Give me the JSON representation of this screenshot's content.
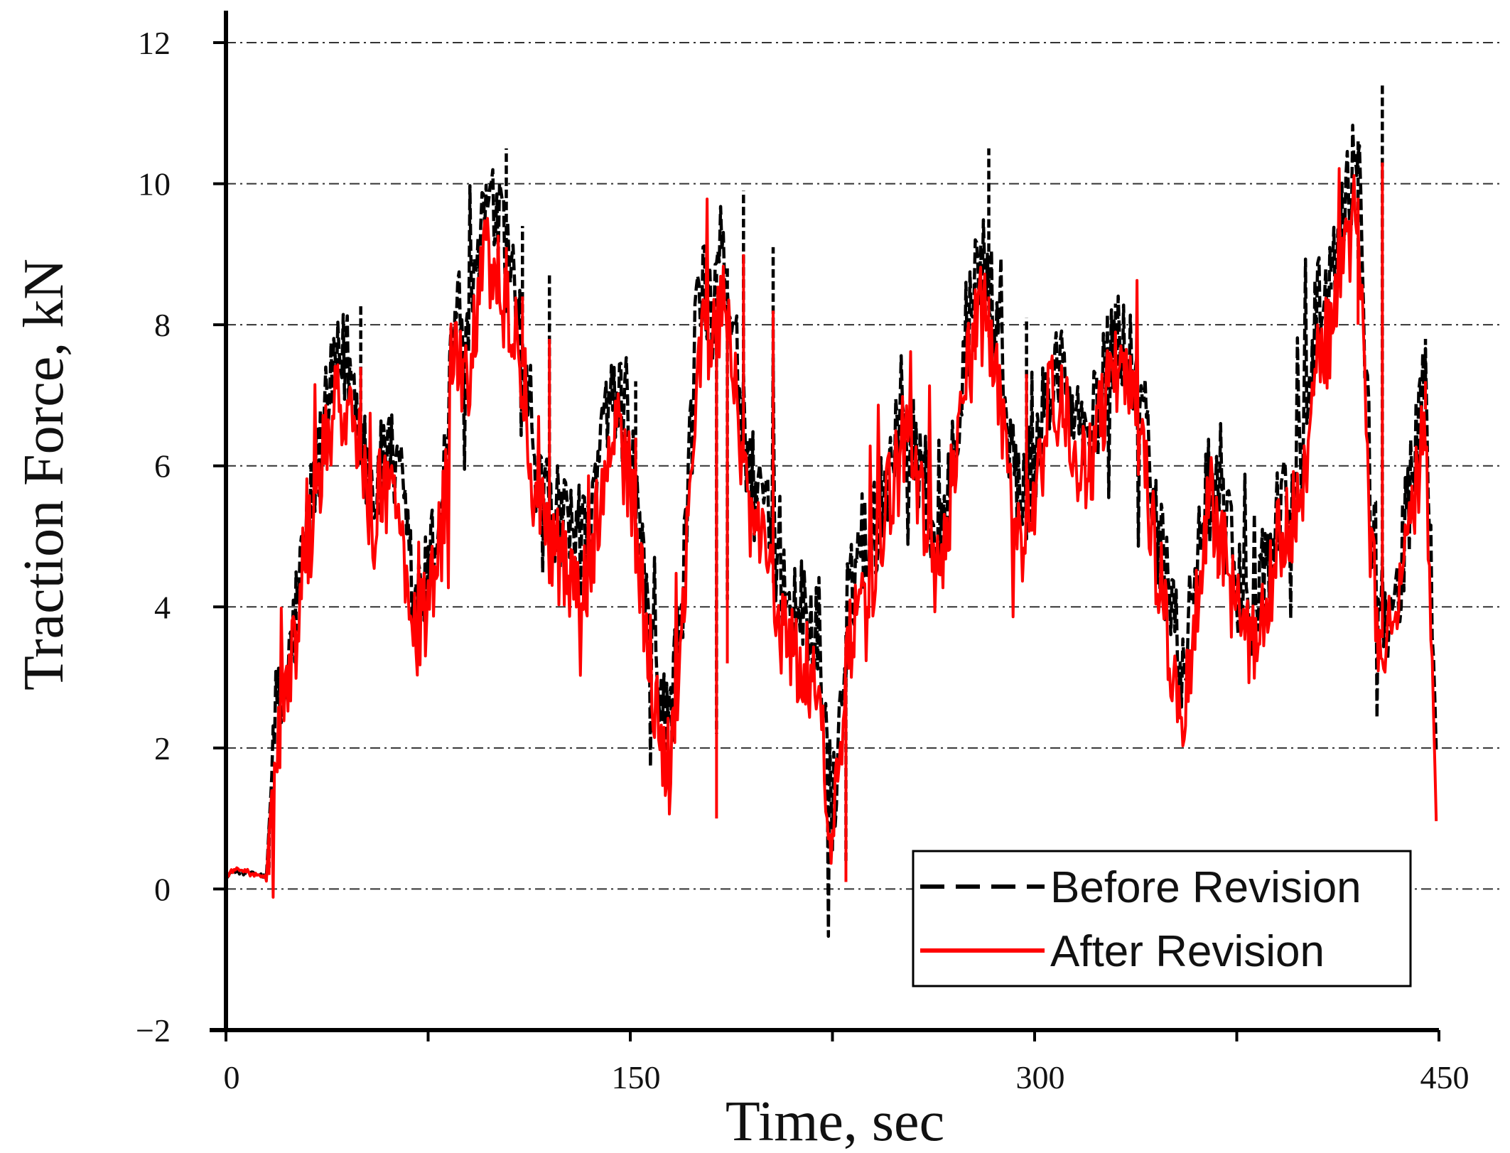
{
  "chart_data": {
    "type": "line",
    "title": "",
    "xlabel": "Time, sec",
    "ylabel": "Traction Force, kN",
    "xlim": [
      0,
      450
    ],
    "ylim": [
      -2,
      12
    ],
    "xticks": [
      0,
      150,
      300,
      450
    ],
    "yticks": [
      -2,
      0,
      2,
      4,
      6,
      8,
      10,
      12
    ],
    "grid": "horizontal dash-dot",
    "legend_position": "bottom-right",
    "series": [
      {
        "name": "Before Revision",
        "style": "dashed",
        "color": "#000000",
        "x": [
          0,
          5,
          10,
          15,
          18,
          22,
          28,
          34,
          40,
          45,
          50,
          55,
          60,
          65,
          70,
          75,
          80,
          85,
          90,
          95,
          100,
          105,
          110,
          115,
          120,
          125,
          130,
          135,
          140,
          145,
          150,
          155,
          160,
          165,
          170,
          175,
          180,
          185,
          190,
          195,
          200,
          205,
          210,
          215,
          220,
          225,
          230,
          235,
          240,
          245,
          250,
          255,
          260,
          265,
          270,
          275,
          280,
          285,
          290,
          295,
          300,
          305,
          310,
          315,
          320,
          325,
          330,
          335,
          340,
          345,
          350,
          355,
          360,
          365,
          370,
          375,
          380,
          385,
          390,
          395,
          400,
          405,
          410,
          415,
          420,
          425,
          430,
          435,
          440,
          445,
          449
        ],
        "y": [
          0.2,
          0.25,
          0.2,
          0.2,
          2.3,
          2.8,
          4.5,
          6.1,
          7.2,
          7.6,
          6.6,
          5.6,
          6.2,
          5.6,
          4.0,
          4.4,
          5.5,
          8.3,
          7.6,
          9.6,
          9.5,
          8.8,
          8.0,
          5.8,
          5.5,
          5.1,
          4.8,
          5.0,
          6.5,
          6.9,
          6.3,
          4.5,
          3.0,
          2.4,
          4.5,
          8.6,
          8.4,
          9.2,
          7.2,
          5.8,
          5.2,
          4.7,
          4.0,
          3.9,
          3.5,
          1.0,
          3.6,
          5.0,
          5.0,
          5.8,
          6.9,
          6.5,
          5.6,
          4.8,
          6.5,
          7.8,
          9.0,
          8.2,
          6.6,
          5.5,
          6.0,
          7.2,
          7.4,
          6.6,
          6.3,
          7.1,
          7.9,
          7.6,
          6.8,
          5.2,
          4.0,
          3.1,
          4.4,
          6.0,
          5.3,
          4.3,
          4.0,
          4.4,
          5.4,
          5.6,
          6.4,
          8.3,
          8.5,
          9.6,
          10.6,
          5.2,
          3.8,
          4.4,
          5.8,
          7.2,
          2.0
        ],
        "x_aux": [
          16,
          26,
          50,
          104,
          110,
          120,
          152,
          182,
          186,
          192,
          203,
          230,
          278,
          283,
          297,
          330,
          368,
          410,
          420,
          429,
          445
        ],
        "y_aux": [
          0.3,
          3.6,
          8.3,
          10.5,
          9.4,
          8.7,
          7.2,
          2.2,
          4.1,
          9.9,
          9.1,
          0.4,
          8.6,
          10.5,
          8.1,
          8.3,
          5.4,
          8.6,
          8.9,
          11.4,
          7.8
        ]
      },
      {
        "name": "After Revision",
        "style": "solid",
        "color": "#ff0000",
        "x": [
          0,
          5,
          10,
          15,
          18,
          22,
          28,
          34,
          40,
          45,
          50,
          55,
          60,
          65,
          70,
          75,
          80,
          85,
          90,
          95,
          100,
          105,
          110,
          115,
          120,
          125,
          130,
          135,
          140,
          145,
          150,
          155,
          160,
          165,
          170,
          175,
          180,
          185,
          190,
          195,
          200,
          205,
          210,
          215,
          220,
          225,
          230,
          235,
          240,
          245,
          250,
          255,
          260,
          265,
          270,
          275,
          280,
          285,
          290,
          295,
          300,
          305,
          310,
          315,
          320,
          325,
          330,
          335,
          340,
          345,
          350,
          355,
          360,
          365,
          370,
          375,
          380,
          385,
          390,
          395,
          400,
          405,
          410,
          415,
          420,
          425,
          430,
          435,
          440,
          445,
          449
        ],
        "y": [
          0.2,
          0.3,
          0.2,
          0.15,
          2.0,
          2.6,
          4.2,
          5.7,
          6.7,
          7.0,
          6.1,
          5.2,
          5.8,
          5.2,
          3.6,
          4.0,
          5.0,
          7.6,
          7.0,
          8.9,
          8.8,
          8.1,
          7.4,
          5.3,
          5.0,
          4.6,
          4.2,
          4.5,
          6.0,
          6.4,
          5.8,
          4.0,
          2.5,
          1.6,
          4.0,
          7.8,
          7.8,
          8.5,
          6.6,
          5.2,
          4.7,
          4.1,
          3.4,
          3.2,
          2.7,
          0.5,
          3.0,
          4.5,
          4.5,
          5.3,
          6.4,
          6.0,
          5.1,
          4.3,
          6.0,
          7.3,
          8.3,
          7.5,
          6.1,
          5.0,
          5.5,
          6.8,
          7.0,
          6.2,
          5.9,
          6.7,
          7.4,
          7.1,
          6.3,
          4.7,
          3.5,
          2.5,
          3.9,
          5.5,
          4.8,
          3.8,
          3.4,
          3.8,
          4.9,
          5.1,
          5.9,
          7.6,
          7.8,
          8.9,
          9.8,
          4.6,
          3.3,
          3.9,
          5.2,
          6.8,
          1.0
        ],
        "x_aux": [
          16,
          26,
          50,
          104,
          110,
          120,
          152,
          182,
          186,
          192,
          203,
          230,
          278,
          283,
          297,
          330,
          368,
          410,
          420,
          429,
          445
        ],
        "y_aux": [
          0.2,
          3.1,
          7.4,
          9.1,
          8.4,
          7.8,
          6.4,
          1.0,
          3.2,
          9.0,
          8.2,
          0.1,
          7.5,
          8.4,
          7.3,
          7.5,
          4.4,
          7.8,
          8.0,
          10.3,
          7.2
        ]
      }
    ]
  }
}
